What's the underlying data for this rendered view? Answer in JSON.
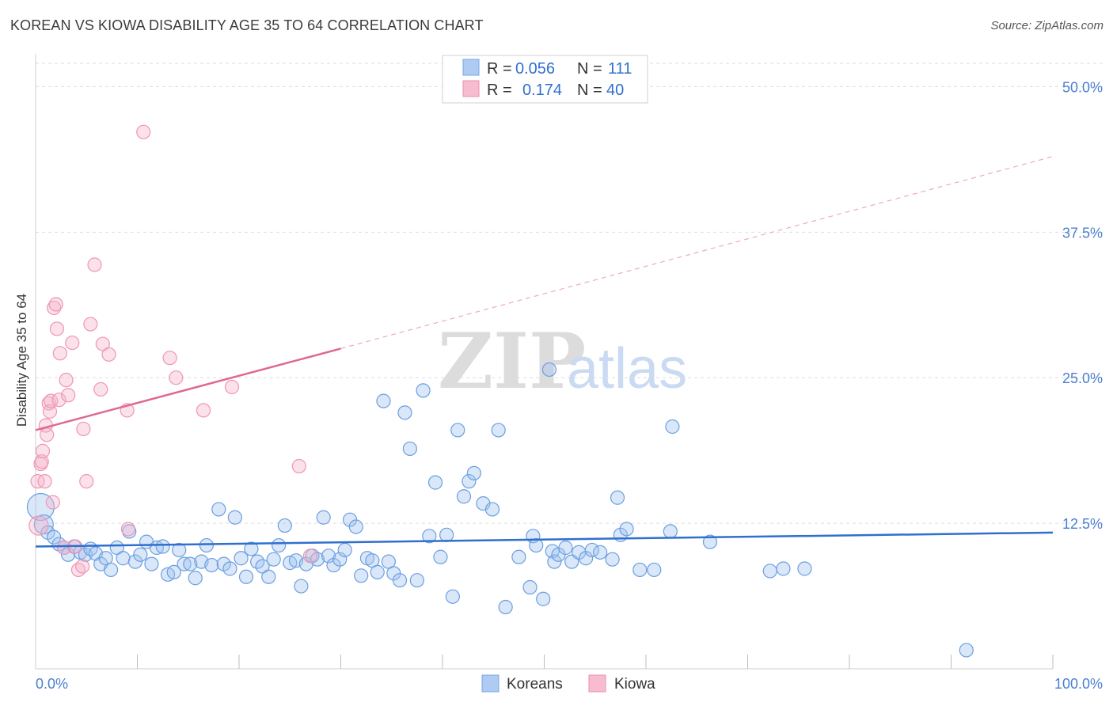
{
  "title": "KOREAN VS KIOWA DISABILITY AGE 35 TO 64 CORRELATION CHART",
  "source": "Source: ZipAtlas.com",
  "watermark": {
    "zip": "ZIP",
    "atlas": "atlas"
  },
  "legend": {
    "rows": [
      {
        "r_label": "R =",
        "r_value": "0.056",
        "n_label": "N =",
        "n_value": "111",
        "color": "#aecbf3"
      },
      {
        "r_label": "R =",
        "r_value": "0.174",
        "n_label": "N =",
        "n_value": "40",
        "color": "#f7bccf"
      }
    ]
  },
  "bottom_legend": [
    {
      "label": "Koreans",
      "color": "#aecbf3"
    },
    {
      "label": "Kiowa",
      "color": "#f7bccf"
    }
  ],
  "chart_data": {
    "type": "scatter",
    "title": "KOREAN VS KIOWA DISABILITY AGE 35 TO 64 CORRELATION CHART",
    "xlabel": "",
    "ylabel": "Disability Age 35 to 64",
    "xlim": [
      0,
      100
    ],
    "ylim": [
      0,
      52
    ],
    "x_tick_labels": [
      "0.0%",
      "100.0%"
    ],
    "y_ticks": [
      12.5,
      25.0,
      37.5,
      50.0
    ],
    "y_tick_labels": [
      "12.5%",
      "25.0%",
      "37.5%",
      "50.0%"
    ],
    "grid": true,
    "colors": {
      "koreans": "#6b9fe0",
      "kiowa": "#ef96b3",
      "koreans_line": "#2f6fce",
      "kiowa_line": "#e06890"
    },
    "series": [
      {
        "name": "Koreans",
        "trend": {
          "x0": 0,
          "y0": 10.5,
          "x1": 100,
          "y1": 11.7
        },
        "points": [
          [
            0.5,
            13.9,
            3
          ],
          [
            0.8,
            12.4,
            2
          ],
          [
            1.2,
            11.7,
            1
          ],
          [
            1.8,
            11.3,
            1
          ],
          [
            2.3,
            10.7,
            1
          ],
          [
            2.8,
            10.4,
            1
          ],
          [
            3.2,
            9.8,
            1
          ],
          [
            3.8,
            10.5,
            1
          ],
          [
            4.4,
            10.0,
            1
          ],
          [
            4.9,
            9.8,
            1
          ],
          [
            5.4,
            10.3,
            1
          ],
          [
            5.9,
            9.9,
            1
          ],
          [
            6.4,
            9.0,
            1
          ],
          [
            6.9,
            9.5,
            1
          ],
          [
            7.4,
            8.5,
            1
          ],
          [
            8.0,
            10.4,
            1
          ],
          [
            8.6,
            9.5,
            1
          ],
          [
            9.2,
            11.8,
            1
          ],
          [
            9.8,
            9.2,
            1
          ],
          [
            10.3,
            9.8,
            1
          ],
          [
            10.9,
            10.9,
            1
          ],
          [
            11.4,
            9.0,
            1
          ],
          [
            11.9,
            10.4,
            1
          ],
          [
            12.5,
            10.5,
            1
          ],
          [
            13.0,
            8.1,
            1
          ],
          [
            13.6,
            8.3,
            1
          ],
          [
            14.1,
            10.2,
            1
          ],
          [
            14.6,
            9.0,
            1
          ],
          [
            15.2,
            9.0,
            1
          ],
          [
            15.7,
            7.8,
            1
          ],
          [
            16.3,
            9.2,
            1
          ],
          [
            16.8,
            10.6,
            1
          ],
          [
            17.3,
            8.9,
            1
          ],
          [
            18.0,
            13.7,
            1
          ],
          [
            18.5,
            9.0,
            1
          ],
          [
            19.1,
            8.6,
            1
          ],
          [
            19.6,
            13.0,
            1
          ],
          [
            20.2,
            9.5,
            1
          ],
          [
            20.7,
            7.9,
            1
          ],
          [
            21.2,
            10.3,
            1
          ],
          [
            21.8,
            9.2,
            1
          ],
          [
            22.3,
            8.8,
            1
          ],
          [
            22.9,
            7.9,
            1
          ],
          [
            23.4,
            9.4,
            1
          ],
          [
            23.9,
            10.6,
            1
          ],
          [
            24.5,
            12.3,
            1
          ],
          [
            25.0,
            9.1,
            1
          ],
          [
            25.6,
            9.3,
            1
          ],
          [
            26.1,
            7.1,
            1
          ],
          [
            26.6,
            9.0,
            1
          ],
          [
            27.2,
            9.7,
            1
          ],
          [
            27.7,
            9.4,
            1
          ],
          [
            28.3,
            13.0,
            1
          ],
          [
            28.8,
            9.7,
            1
          ],
          [
            29.3,
            8.9,
            1
          ],
          [
            29.9,
            9.4,
            1
          ],
          [
            30.4,
            10.2,
            1
          ],
          [
            30.9,
            12.8,
            1
          ],
          [
            31.5,
            12.2,
            1
          ],
          [
            32.0,
            8.0,
            1
          ],
          [
            32.6,
            9.5,
            1
          ],
          [
            33.1,
            9.3,
            1
          ],
          [
            33.6,
            8.3,
            1
          ],
          [
            34.2,
            23.0,
            1
          ],
          [
            34.7,
            9.2,
            1
          ],
          [
            35.2,
            8.2,
            1
          ],
          [
            35.8,
            7.6,
            1
          ],
          [
            36.3,
            22.0,
            1
          ],
          [
            36.8,
            18.9,
            1
          ],
          [
            37.5,
            7.6,
            1
          ],
          [
            38.1,
            23.9,
            1
          ],
          [
            38.7,
            11.4,
            1
          ],
          [
            39.3,
            16.0,
            1
          ],
          [
            39.8,
            9.6,
            1
          ],
          [
            40.4,
            11.5,
            1
          ],
          [
            41.0,
            6.2,
            1
          ],
          [
            41.5,
            20.5,
            1
          ],
          [
            42.1,
            14.8,
            1
          ],
          [
            42.6,
            16.1,
            1
          ],
          [
            43.1,
            16.8,
            1
          ],
          [
            44.0,
            14.2,
            1
          ],
          [
            44.9,
            13.7,
            1
          ],
          [
            45.5,
            20.5,
            1
          ],
          [
            46.2,
            5.3,
            1
          ],
          [
            47.5,
            9.6,
            1
          ],
          [
            48.6,
            7.0,
            1
          ],
          [
            48.9,
            11.4,
            1
          ],
          [
            49.2,
            10.6,
            1
          ],
          [
            49.9,
            6.0,
            1
          ],
          [
            50.5,
            25.7,
            1
          ],
          [
            50.8,
            10.1,
            1
          ],
          [
            51.0,
            9.2,
            1
          ],
          [
            51.4,
            9.8,
            1
          ],
          [
            52.1,
            10.4,
            1
          ],
          [
            52.7,
            9.2,
            1
          ],
          [
            53.4,
            10.0,
            1
          ],
          [
            54.1,
            9.5,
            1
          ],
          [
            54.7,
            10.2,
            1
          ],
          [
            55.5,
            10.0,
            1
          ],
          [
            56.7,
            9.4,
            1
          ],
          [
            57.2,
            14.7,
            1
          ],
          [
            57.5,
            11.5,
            1
          ],
          [
            58.1,
            12.0,
            1
          ],
          [
            59.4,
            8.5,
            1
          ],
          [
            60.8,
            8.5,
            1
          ],
          [
            62.4,
            11.8,
            1
          ],
          [
            62.6,
            20.8,
            1
          ],
          [
            66.3,
            10.9,
            1
          ],
          [
            72.2,
            8.4,
            1
          ],
          [
            73.5,
            8.6,
            1
          ],
          [
            75.6,
            8.6,
            1
          ],
          [
            91.5,
            1.6,
            1
          ]
        ]
      },
      {
        "name": "Kiowa",
        "trend": {
          "x0": 0,
          "y0": 20.5,
          "x1": 30,
          "y1": 27.5,
          "extended": {
            "x1": 100,
            "y1": 44.0
          }
        },
        "points": [
          [
            0.2,
            16.1,
            1
          ],
          [
            0.3,
            12.3,
            2
          ],
          [
            0.5,
            17.6,
            1
          ],
          [
            0.6,
            17.8,
            1
          ],
          [
            0.7,
            18.7,
            1
          ],
          [
            0.9,
            16.1,
            1
          ],
          [
            1.0,
            20.9,
            1
          ],
          [
            1.1,
            20.1,
            1
          ],
          [
            1.3,
            22.8,
            1
          ],
          [
            1.4,
            22.1,
            1
          ],
          [
            1.5,
            23.0,
            1
          ],
          [
            1.7,
            14.3,
            1
          ],
          [
            1.8,
            31.0,
            1
          ],
          [
            2.0,
            31.3,
            1
          ],
          [
            2.1,
            29.2,
            1
          ],
          [
            2.3,
            23.1,
            1
          ],
          [
            2.4,
            27.1,
            1
          ],
          [
            2.8,
            10.4,
            1
          ],
          [
            3.0,
            24.8,
            1
          ],
          [
            3.2,
            23.5,
            1
          ],
          [
            3.6,
            28.0,
            1
          ],
          [
            3.9,
            10.5,
            1
          ],
          [
            4.2,
            8.5,
            1
          ],
          [
            4.6,
            8.8,
            1
          ],
          [
            4.7,
            20.6,
            1
          ],
          [
            5.0,
            16.1,
            1
          ],
          [
            5.4,
            29.6,
            1
          ],
          [
            5.8,
            34.7,
            1
          ],
          [
            6.4,
            24.0,
            1
          ],
          [
            6.6,
            27.9,
            1
          ],
          [
            7.2,
            27.0,
            1
          ],
          [
            9.0,
            22.2,
            1
          ],
          [
            9.1,
            12.0,
            1
          ],
          [
            10.6,
            46.1,
            1
          ],
          [
            13.2,
            26.7,
            1
          ],
          [
            13.8,
            25.0,
            1
          ],
          [
            16.5,
            22.2,
            1
          ],
          [
            19.3,
            24.2,
            1
          ],
          [
            25.9,
            17.4,
            1
          ],
          [
            27.0,
            9.7,
            1
          ]
        ]
      }
    ]
  }
}
